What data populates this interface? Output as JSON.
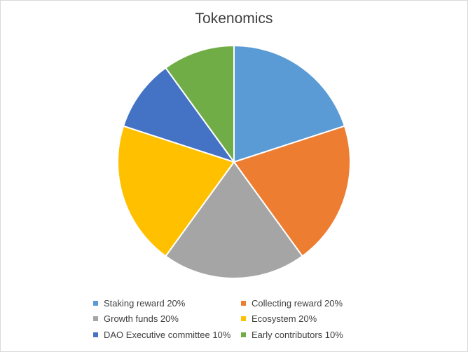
{
  "chart_data": {
    "type": "pie",
    "title": "Tokenomics",
    "slices": [
      {
        "label": "Staking reward",
        "value": 20,
        "legend_text": "Staking reward 20%",
        "color": "#5b9bd5"
      },
      {
        "label": "Collecting reward",
        "value": 20,
        "legend_text": "Collecting reward 20%",
        "color": "#ed7d31"
      },
      {
        "label": "Growth funds",
        "value": 20,
        "legend_text": "Growth funds 20%",
        "color": "#a5a5a5"
      },
      {
        "label": "Ecosystem",
        "value": 20,
        "legend_text": "Ecosystem 20%",
        "color": "#ffc000"
      },
      {
        "label": "DAO Executive committee",
        "value": 10,
        "legend_text": "DAO Executive committee 10%",
        "color": "#4472c4"
      },
      {
        "label": "Early contributors",
        "value": 10,
        "legend_text": "Early contributors 10%",
        "color": "#70ad47"
      }
    ],
    "legend_position": "bottom"
  }
}
